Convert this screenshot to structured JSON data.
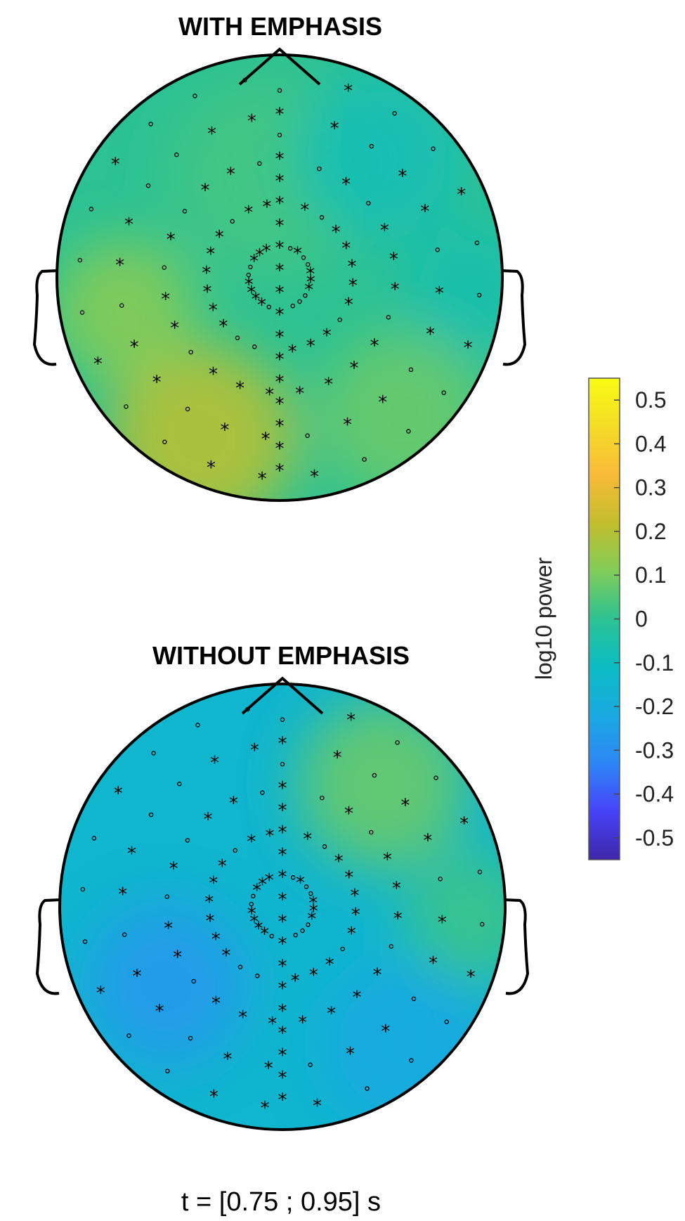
{
  "chart_data": [
    {
      "type": "heatmap",
      "subtype": "scalp-topography",
      "title": "WITH EMPHASIS",
      "overall_tone": 0.0,
      "highlights": [
        {
          "region": "left-lower",
          "value": 0.2
        },
        {
          "region": "right-lower",
          "value": 0.08
        },
        {
          "region": "upper-center",
          "value": 0.03
        },
        {
          "region": "left-mid",
          "value": 0.12
        },
        {
          "region": "right-upper",
          "value": -0.08
        },
        {
          "region": "right-edge",
          "value": -0.06
        }
      ]
    },
    {
      "type": "heatmap",
      "subtype": "scalp-topography",
      "title": "WITHOUT EMPHASIS",
      "overall_tone": -0.15,
      "highlights": [
        {
          "region": "right-upper",
          "value": 0.08
        },
        {
          "region": "right-edge",
          "value": 0.02
        },
        {
          "region": "left-lower-mid",
          "value": -0.27
        },
        {
          "region": "right-lower",
          "value": -0.22
        }
      ]
    }
  ],
  "colorbar": {
    "label": "log10 power",
    "ticks": [
      "0.5",
      "0.4",
      "0.3",
      "0.2",
      "0.1",
      "0",
      "-0.1",
      "-0.2",
      "-0.3",
      "-0.4",
      "-0.5"
    ],
    "range": [
      -0.55,
      0.55
    ],
    "colors": [
      "#3e26a8",
      "#4743f8",
      "#2e87f7",
      "#1aa9e1",
      "#0bbcc3",
      "#2cc293",
      "#81cc59",
      "#c3bd2b",
      "#f9ba39",
      "#f4dc26",
      "#f9fb15"
    ]
  },
  "electrode_symbols": {
    "significant": "*",
    "non_significant": "o"
  },
  "time_window": "t = [0.75 ; 0.95] s"
}
